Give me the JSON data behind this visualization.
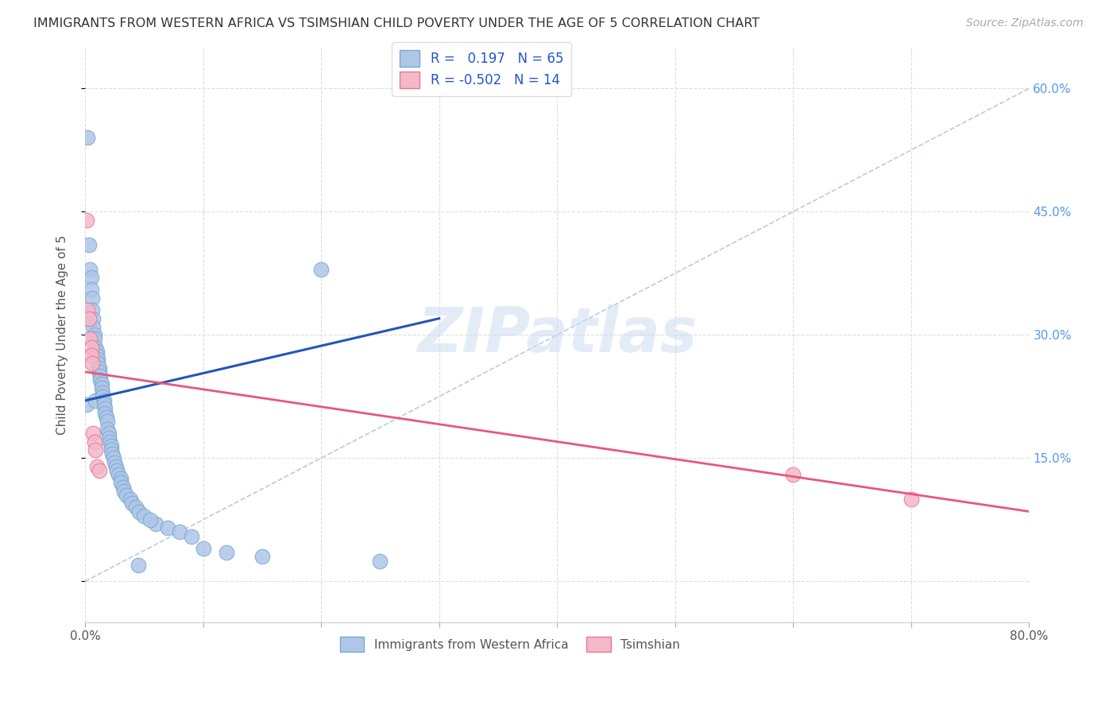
{
  "title": "IMMIGRANTS FROM WESTERN AFRICA VS TSIMSHIAN CHILD POVERTY UNDER THE AGE OF 5 CORRELATION CHART",
  "source": "Source: ZipAtlas.com",
  "ylabel": "Child Poverty Under the Age of 5",
  "xlim": [
    0.0,
    0.8
  ],
  "ylim": [
    -0.05,
    0.65
  ],
  "yticks": [
    0.0,
    0.15,
    0.3,
    0.45,
    0.6
  ],
  "xticks": [
    0.0,
    0.1,
    0.2,
    0.3,
    0.4,
    0.5,
    0.6,
    0.7,
    0.8
  ],
  "watermark": "ZIPatlas",
  "legend_blue_label": "Immigrants from Western Africa",
  "legend_pink_label": "Tsimshian",
  "R_blue": 0.197,
  "N_blue": 65,
  "R_pink": -0.502,
  "N_pink": 14,
  "blue_x": [
    0.001,
    0.003,
    0.004,
    0.005,
    0.005,
    0.006,
    0.006,
    0.007,
    0.007,
    0.008,
    0.008,
    0.009,
    0.009,
    0.01,
    0.01,
    0.011,
    0.011,
    0.012,
    0.012,
    0.013,
    0.013,
    0.014,
    0.014,
    0.015,
    0.015,
    0.016,
    0.016,
    0.017,
    0.017,
    0.018,
    0.019,
    0.019,
    0.02,
    0.02,
    0.021,
    0.022,
    0.022,
    0.023,
    0.024,
    0.025,
    0.026,
    0.027,
    0.028,
    0.03,
    0.03,
    0.032,
    0.033,
    0.035,
    0.038,
    0.04,
    0.043,
    0.046,
    0.05,
    0.06,
    0.07,
    0.08,
    0.09,
    0.1,
    0.12,
    0.15,
    0.002,
    0.2,
    0.25,
    0.055,
    0.045
  ],
  "blue_y": [
    0.215,
    0.41,
    0.38,
    0.37,
    0.355,
    0.345,
    0.33,
    0.32,
    0.31,
    0.3,
    0.295,
    0.285,
    0.22,
    0.28,
    0.275,
    0.27,
    0.265,
    0.26,
    0.255,
    0.25,
    0.245,
    0.24,
    0.235,
    0.23,
    0.225,
    0.22,
    0.215,
    0.21,
    0.205,
    0.2,
    0.195,
    0.185,
    0.18,
    0.175,
    0.17,
    0.165,
    0.16,
    0.155,
    0.15,
    0.145,
    0.14,
    0.135,
    0.13,
    0.125,
    0.12,
    0.115,
    0.11,
    0.105,
    0.1,
    0.095,
    0.09,
    0.085,
    0.08,
    0.07,
    0.065,
    0.06,
    0.055,
    0.04,
    0.035,
    0.03,
    0.54,
    0.38,
    0.025,
    0.075,
    0.02
  ],
  "pink_x": [
    0.001,
    0.002,
    0.003,
    0.004,
    0.005,
    0.005,
    0.006,
    0.007,
    0.008,
    0.009,
    0.01,
    0.012,
    0.6,
    0.7
  ],
  "pink_y": [
    0.44,
    0.33,
    0.32,
    0.295,
    0.285,
    0.275,
    0.265,
    0.18,
    0.17,
    0.16,
    0.14,
    0.135,
    0.13,
    0.1
  ],
  "blue_line_x": [
    0.0,
    0.3
  ],
  "blue_line_y": [
    0.22,
    0.32
  ],
  "pink_line_x": [
    0.0,
    0.8
  ],
  "pink_line_y": [
    0.255,
    0.085
  ],
  "dashed_line_x": [
    0.0,
    0.8
  ],
  "dashed_line_y": [
    0.0,
    0.6
  ],
  "bg_color": "#ffffff",
  "scatter_blue_color": "#aec6e8",
  "scatter_blue_edge": "#7aaad0",
  "scatter_pink_color": "#f4b8c8",
  "scatter_pink_edge": "#e87898",
  "line_blue_color": "#2255bb",
  "line_pink_color": "#e85878",
  "dashed_color": "#b8cce0",
  "grid_color": "#dddddd",
  "title_color": "#333333",
  "axis_label_color": "#555555",
  "right_tick_color": "#5599ee"
}
